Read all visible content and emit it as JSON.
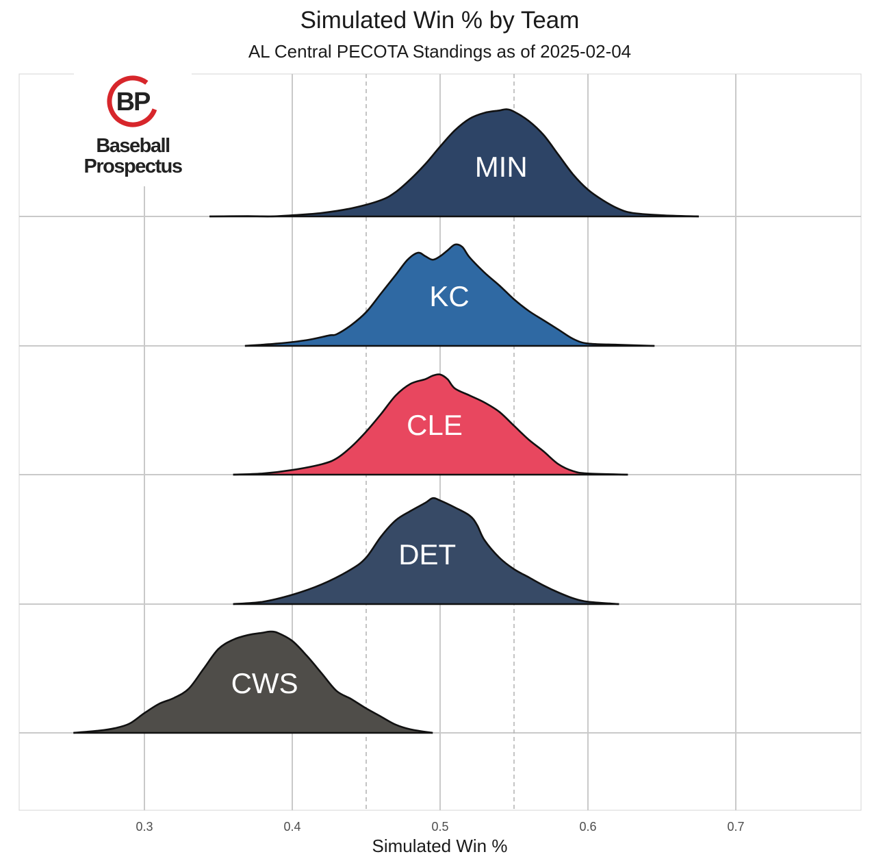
{
  "chart_data": {
    "type": "ridgeline",
    "title": "Simulated Win % by Team",
    "subtitle": "AL Central PECOTA Standings as of 2025-02-04",
    "xlabel": "Simulated Win %",
    "ylabel": "",
    "xlim": [
      0.215,
      0.785
    ],
    "xticks": [
      0.3,
      0.4,
      0.5,
      0.6,
      0.7
    ],
    "xtick_labels": [
      "0.3",
      "0.4",
      "0.5",
      "0.6",
      "0.7"
    ],
    "reference_lines": [
      0.45,
      0.55
    ],
    "grid": true,
    "series": [
      {
        "name": "MIN",
        "color": "#2d4466",
        "range": [
          0.344,
          0.675
        ],
        "curve": [
          [
            0.344,
            0
          ],
          [
            0.37,
            0.003
          ],
          [
            0.385,
            0
          ],
          [
            0.4,
            0.01
          ],
          [
            0.42,
            0.03
          ],
          [
            0.44,
            0.07
          ],
          [
            0.46,
            0.14
          ],
          [
            0.47,
            0.21
          ],
          [
            0.48,
            0.32
          ],
          [
            0.49,
            0.45
          ],
          [
            0.5,
            0.6
          ],
          [
            0.51,
            0.74
          ],
          [
            0.52,
            0.84
          ],
          [
            0.53,
            0.89
          ],
          [
            0.54,
            0.91
          ],
          [
            0.545,
            0.92
          ],
          [
            0.55,
            0.9
          ],
          [
            0.56,
            0.82
          ],
          [
            0.57,
            0.7
          ],
          [
            0.58,
            0.53
          ],
          [
            0.59,
            0.36
          ],
          [
            0.6,
            0.23
          ],
          [
            0.61,
            0.14
          ],
          [
            0.62,
            0.07
          ],
          [
            0.63,
            0.03
          ],
          [
            0.65,
            0.01
          ],
          [
            0.675,
            0
          ]
        ]
      },
      {
        "name": "KC",
        "color": "#2f69a3",
        "range": [
          0.368,
          0.645
        ],
        "curve": [
          [
            0.368,
            0
          ],
          [
            0.39,
            0.02
          ],
          [
            0.41,
            0.05
          ],
          [
            0.425,
            0.09
          ],
          [
            0.43,
            0.1
          ],
          [
            0.44,
            0.18
          ],
          [
            0.45,
            0.29
          ],
          [
            0.46,
            0.45
          ],
          [
            0.47,
            0.61
          ],
          [
            0.478,
            0.74
          ],
          [
            0.485,
            0.8
          ],
          [
            0.49,
            0.77
          ],
          [
            0.495,
            0.74
          ],
          [
            0.5,
            0.77
          ],
          [
            0.505,
            0.82
          ],
          [
            0.51,
            0.87
          ],
          [
            0.515,
            0.85
          ],
          [
            0.52,
            0.76
          ],
          [
            0.53,
            0.63
          ],
          [
            0.54,
            0.52
          ],
          [
            0.55,
            0.4
          ],
          [
            0.56,
            0.3
          ],
          [
            0.57,
            0.22
          ],
          [
            0.58,
            0.14
          ],
          [
            0.59,
            0.06
          ],
          [
            0.6,
            0.02
          ],
          [
            0.62,
            0.01
          ],
          [
            0.645,
            0
          ]
        ]
      },
      {
        "name": "CLE",
        "color": "#e8475f",
        "range": [
          0.36,
          0.627
        ],
        "curve": [
          [
            0.36,
            0
          ],
          [
            0.38,
            0.01
          ],
          [
            0.4,
            0.04
          ],
          [
            0.42,
            0.09
          ],
          [
            0.43,
            0.14
          ],
          [
            0.44,
            0.24
          ],
          [
            0.45,
            0.37
          ],
          [
            0.46,
            0.52
          ],
          [
            0.47,
            0.68
          ],
          [
            0.48,
            0.78
          ],
          [
            0.49,
            0.82
          ],
          [
            0.495,
            0.85
          ],
          [
            0.5,
            0.86
          ],
          [
            0.505,
            0.82
          ],
          [
            0.51,
            0.74
          ],
          [
            0.52,
            0.68
          ],
          [
            0.53,
            0.62
          ],
          [
            0.54,
            0.54
          ],
          [
            0.55,
            0.42
          ],
          [
            0.56,
            0.3
          ],
          [
            0.57,
            0.2
          ],
          [
            0.58,
            0.09
          ],
          [
            0.59,
            0.03
          ],
          [
            0.6,
            0.01
          ],
          [
            0.627,
            0
          ]
        ]
      },
      {
        "name": "DET",
        "color": "#374a66",
        "range": [
          0.36,
          0.621
        ],
        "curve": [
          [
            0.36,
            0
          ],
          [
            0.38,
            0.02
          ],
          [
            0.4,
            0.08
          ],
          [
            0.42,
            0.17
          ],
          [
            0.44,
            0.3
          ],
          [
            0.45,
            0.4
          ],
          [
            0.46,
            0.58
          ],
          [
            0.47,
            0.72
          ],
          [
            0.48,
            0.8
          ],
          [
            0.49,
            0.87
          ],
          [
            0.495,
            0.91
          ],
          [
            0.5,
            0.89
          ],
          [
            0.51,
            0.83
          ],
          [
            0.52,
            0.76
          ],
          [
            0.525,
            0.68
          ],
          [
            0.53,
            0.55
          ],
          [
            0.54,
            0.4
          ],
          [
            0.55,
            0.3
          ],
          [
            0.56,
            0.23
          ],
          [
            0.57,
            0.16
          ],
          [
            0.58,
            0.1
          ],
          [
            0.59,
            0.05
          ],
          [
            0.6,
            0.02
          ],
          [
            0.621,
            0
          ]
        ]
      },
      {
        "name": "CWS",
        "color": "#4f4d49",
        "range": [
          0.252,
          0.495
        ],
        "curve": [
          [
            0.252,
            0
          ],
          [
            0.27,
            0.02
          ],
          [
            0.28,
            0.04
          ],
          [
            0.29,
            0.08
          ],
          [
            0.3,
            0.17
          ],
          [
            0.31,
            0.25
          ],
          [
            0.32,
            0.3
          ],
          [
            0.33,
            0.38
          ],
          [
            0.34,
            0.55
          ],
          [
            0.35,
            0.72
          ],
          [
            0.36,
            0.8
          ],
          [
            0.37,
            0.84
          ],
          [
            0.38,
            0.86
          ],
          [
            0.385,
            0.87
          ],
          [
            0.39,
            0.86
          ],
          [
            0.4,
            0.79
          ],
          [
            0.41,
            0.66
          ],
          [
            0.42,
            0.51
          ],
          [
            0.43,
            0.36
          ],
          [
            0.44,
            0.29
          ],
          [
            0.45,
            0.21
          ],
          [
            0.46,
            0.14
          ],
          [
            0.47,
            0.07
          ],
          [
            0.48,
            0.03
          ],
          [
            0.495,
            0
          ]
        ]
      }
    ]
  },
  "logo": {
    "initials": "BP",
    "line1": "Baseball",
    "line2": "Prospectus",
    "color": "#d7262b"
  }
}
